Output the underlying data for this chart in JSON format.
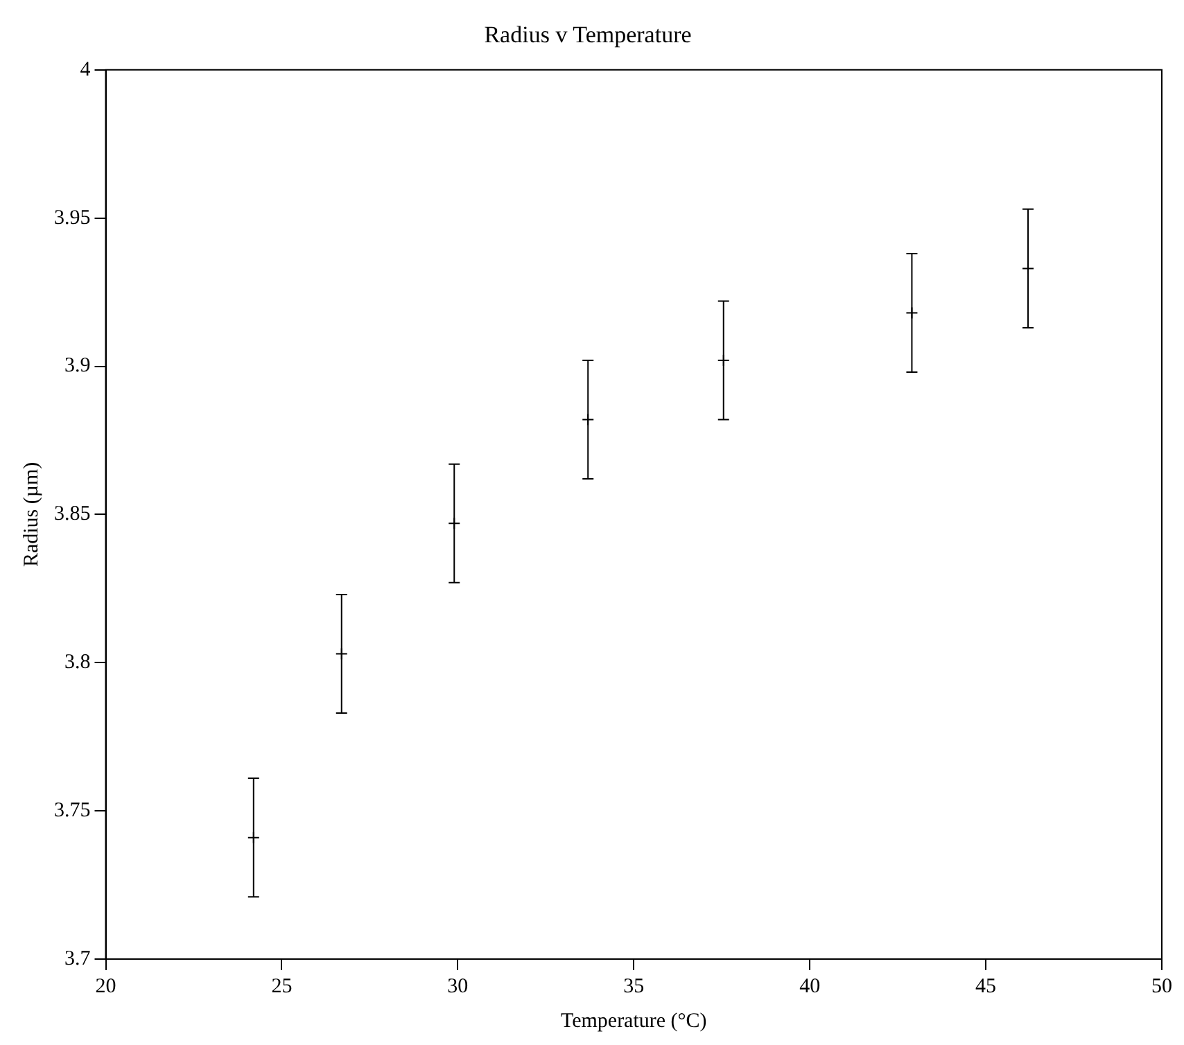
{
  "chart_data": {
    "type": "scatter",
    "title": "Radius v Temperature",
    "xlabel": "Temperature (°C)",
    "ylabel": "Radius (µm)",
    "x": [
      24.2,
      26.7,
      29.9,
      33.7,
      37.55,
      42.9,
      46.2
    ],
    "values": [
      3.741,
      3.803,
      3.847,
      3.882,
      3.902,
      3.918,
      3.933
    ],
    "errors": [
      0.02,
      0.02,
      0.02,
      0.02,
      0.02,
      0.02,
      0.02
    ],
    "color": "#000000",
    "marker": "cross",
    "xlim": [
      20,
      50
    ],
    "xticks": [
      20,
      25,
      30,
      35,
      40,
      45,
      50
    ],
    "ylim": [
      3.7,
      4
    ],
    "yticks": [
      3.7,
      3.75,
      3.8,
      3.85,
      3.9,
      3.95,
      {
        "value": 4,
        "label": "4"
      }
    ],
    "grid": false,
    "legend": false
  }
}
